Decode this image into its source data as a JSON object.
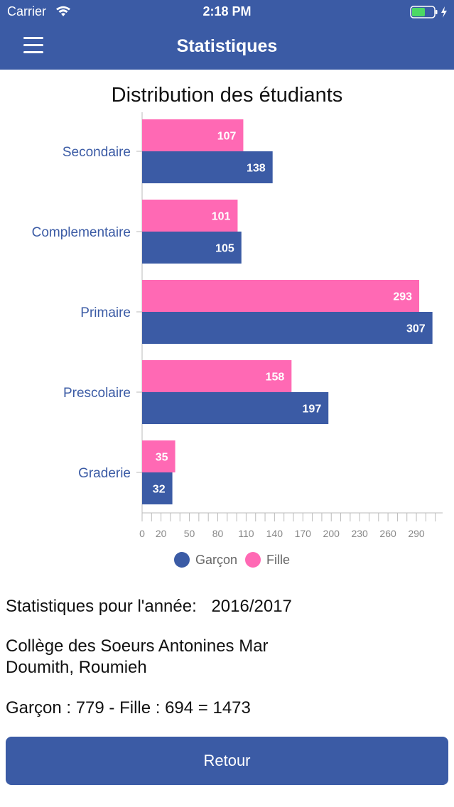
{
  "status_bar": {
    "carrier": "Carrier",
    "time": "2:18 PM"
  },
  "header": {
    "title": "Statistiques"
  },
  "chart_data": {
    "type": "bar",
    "orientation": "horizontal",
    "title": "Distribution des étudiants",
    "categories": [
      "Secondaire",
      "Complementaire",
      "Primaire",
      "Prescolaire",
      "Graderie"
    ],
    "series": [
      {
        "name": "Fille",
        "color": "#ff69b4",
        "values": [
          107,
          101,
          293,
          158,
          35
        ]
      },
      {
        "name": "Garçon",
        "color": "#3b5ba5",
        "values": [
          138,
          105,
          307,
          197,
          32
        ]
      }
    ],
    "x_ticks": [
      "0",
      "20",
      "50",
      "80",
      "110",
      "140",
      "170",
      "200",
      "230",
      "260",
      "290"
    ],
    "xlim": [
      0,
      308
    ],
    "grid": false,
    "legend_position": "bottom"
  },
  "info": {
    "year_label": "Statistiques pour l'année:",
    "year_value": "2016/2017",
    "school_line1": "Collège des Soeurs Antonines Mar",
    "school_line2": "Doumith, Roumieh",
    "totals": "Garçon : 779 - Fille : 694 = 1473"
  },
  "buttons": {
    "retour": "Retour"
  }
}
